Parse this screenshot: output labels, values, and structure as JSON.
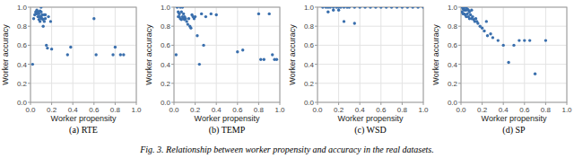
{
  "caption": "Fig. 3.  Relationship between worker propensity and accuracy in the real datasets.",
  "chart_data": [
    {
      "type": "scatter",
      "title": "(a) RTE",
      "xlabel": "Worker propensity",
      "ylabel": "Worker accuracy",
      "color": "#3a6fad",
      "grid": true,
      "xlim": [
        0.0,
        1.0
      ],
      "ylim": [
        0.0,
        1.0
      ],
      "xticks": [
        {
          "value": 0.0,
          "label": "0.0"
        },
        0.2,
        0.4,
        0.6,
        0.8,
        {
          "value": 1.0,
          "label": "1.0"
        }
      ],
      "yticks": [
        {
          "value": 0.0,
          "label": "0.0"
        },
        0.2,
        0.4,
        0.6,
        0.8,
        {
          "value": 1.0,
          "label": "1.0"
        }
      ],
      "x": [
        0.02,
        0.03,
        0.04,
        0.05,
        0.05,
        0.06,
        0.06,
        0.07,
        0.07,
        0.08,
        0.08,
        0.08,
        0.09,
        0.09,
        0.09,
        0.1,
        0.1,
        0.1,
        0.1,
        0.11,
        0.11,
        0.12,
        0.12,
        0.13,
        0.13,
        0.14,
        0.14,
        0.15,
        0.16,
        0.17,
        0.19,
        0.2,
        0.35,
        0.38,
        0.6,
        0.62,
        0.78,
        0.8,
        0.85,
        0.88
      ],
      "values": [
        0.4,
        0.88,
        0.92,
        0.93,
        0.95,
        0.93,
        0.97,
        0.9,
        0.95,
        0.87,
        0.9,
        0.93,
        0.85,
        0.9,
        0.96,
        0.88,
        0.9,
        0.95,
        1.0,
        0.88,
        0.92,
        0.8,
        0.87,
        0.85,
        0.92,
        0.88,
        0.92,
        0.6,
        0.57,
        0.9,
        0.85,
        0.56,
        0.5,
        0.58,
        0.88,
        0.5,
        0.5,
        0.58,
        0.5,
        0.5
      ]
    },
    {
      "type": "scatter",
      "title": "(b) TEMP",
      "xlabel": "Worker propensity",
      "ylabel": "Worker accuracy",
      "color": "#3a6fad",
      "grid": true,
      "xlim": [
        0.0,
        1.0
      ],
      "ylim": [
        0.0,
        1.0
      ],
      "xticks": [
        {
          "value": 0.0,
          "label": "0.0"
        },
        0.2,
        0.4,
        0.6,
        0.8,
        {
          "value": 1.0,
          "label": "1.0"
        }
      ],
      "yticks": [
        {
          "value": 0.0,
          "label": "0.0"
        },
        0.2,
        0.4,
        0.6,
        0.8,
        {
          "value": 1.0,
          "label": "1.0"
        }
      ],
      "x": [
        0.02,
        0.03,
        0.04,
        0.04,
        0.05,
        0.05,
        0.06,
        0.06,
        0.07,
        0.07,
        0.08,
        0.08,
        0.09,
        0.09,
        0.1,
        0.1,
        0.11,
        0.12,
        0.13,
        0.14,
        0.15,
        0.16,
        0.17,
        0.18,
        0.19,
        0.2,
        0.22,
        0.24,
        0.26,
        0.28,
        0.3,
        0.35,
        0.4,
        0.6,
        0.65,
        0.8,
        0.82,
        0.85,
        0.9,
        0.93,
        0.95,
        0.97
      ],
      "values": [
        0.5,
        1.0,
        0.9,
        0.95,
        0.9,
        0.93,
        0.88,
        1.0,
        0.87,
        0.95,
        0.9,
        1.0,
        0.88,
        0.93,
        0.87,
        0.9,
        0.88,
        0.85,
        0.82,
        0.88,
        0.8,
        0.78,
        0.92,
        0.9,
        0.88,
        0.9,
        0.7,
        0.4,
        0.93,
        0.6,
        0.9,
        0.93,
        0.92,
        0.53,
        0.55,
        0.93,
        0.45,
        0.45,
        0.93,
        0.5,
        0.45,
        0.45
      ]
    },
    {
      "type": "scatter",
      "title": "(c) WSD",
      "xlabel": "Worker propensity",
      "ylabel": "Worker accuracy",
      "color": "#3a6fad",
      "grid": true,
      "xlim": [
        0.0,
        1.0
      ],
      "ylim": [
        0.0,
        1.0
      ],
      "xticks": [
        {
          "value": 0.0,
          "label": "0.0"
        },
        0.2,
        0.4,
        0.6,
        0.8,
        {
          "value": 1.0,
          "label": "1.0"
        }
      ],
      "yticks": [
        {
          "value": 0.0,
          "label": "0.0"
        },
        0.2,
        0.4,
        0.6,
        0.8,
        {
          "value": 1.0,
          "label": "1.0"
        }
      ],
      "x": [
        0.05,
        0.08,
        0.1,
        0.12,
        0.15,
        0.18,
        0.2,
        0.22,
        0.25,
        0.28,
        0.3,
        0.35,
        0.4,
        0.45,
        0.5,
        0.55,
        0.6,
        0.65,
        0.7,
        0.75,
        0.8,
        0.85,
        0.9,
        0.95,
        1.0,
        0.1,
        0.15,
        0.2,
        0.25,
        0.35
      ],
      "values": [
        1.0,
        1.0,
        1.0,
        1.0,
        1.0,
        1.0,
        1.0,
        1.0,
        1.0,
        1.0,
        1.0,
        1.0,
        1.0,
        1.0,
        1.0,
        1.0,
        1.0,
        1.0,
        1.0,
        1.0,
        1.0,
        1.0,
        1.0,
        1.0,
        1.0,
        0.95,
        0.97,
        0.97,
        0.85,
        0.83
      ]
    },
    {
      "type": "scatter",
      "title": "(d) SP",
      "xlabel": "Worker propensity",
      "ylabel": "Worker accuracy",
      "color": "#3a6fad",
      "grid": true,
      "xlim": [
        0.0,
        1.0
      ],
      "ylim": [
        0.0,
        1.0
      ],
      "xticks": [
        {
          "value": 0.0,
          "label": "0.0"
        },
        0.2,
        0.4,
        0.6,
        0.8,
        {
          "value": 1.0,
          "label": "1.0"
        }
      ],
      "yticks": [
        {
          "value": 0.0,
          "label": "0.0"
        },
        0.2,
        0.4,
        0.6,
        0.8,
        {
          "value": 1.0,
          "label": "1.0"
        }
      ],
      "x": [
        0.01,
        0.01,
        0.02,
        0.02,
        0.02,
        0.03,
        0.03,
        0.03,
        0.04,
        0.04,
        0.04,
        0.05,
        0.05,
        0.05,
        0.06,
        0.06,
        0.07,
        0.07,
        0.08,
        0.08,
        0.09,
        0.1,
        0.1,
        0.11,
        0.12,
        0.13,
        0.14,
        0.15,
        0.16,
        0.18,
        0.2,
        0.22,
        0.24,
        0.25,
        0.28,
        0.3,
        0.35,
        0.4,
        0.45,
        0.5,
        0.55,
        0.6,
        0.65,
        0.7,
        0.8
      ],
      "values": [
        1.0,
        0.95,
        1.0,
        0.98,
        0.93,
        1.0,
        0.97,
        0.93,
        1.0,
        0.97,
        0.92,
        1.0,
        0.97,
        0.9,
        0.98,
        0.93,
        0.97,
        0.9,
        0.95,
        0.88,
        0.92,
        0.97,
        0.88,
        0.9,
        0.87,
        0.85,
        0.88,
        0.85,
        0.83,
        0.8,
        0.78,
        0.75,
        0.85,
        0.7,
        0.72,
        0.68,
        0.65,
        0.6,
        0.42,
        0.6,
        0.65,
        0.65,
        0.65,
        0.3,
        0.65
      ]
    }
  ]
}
